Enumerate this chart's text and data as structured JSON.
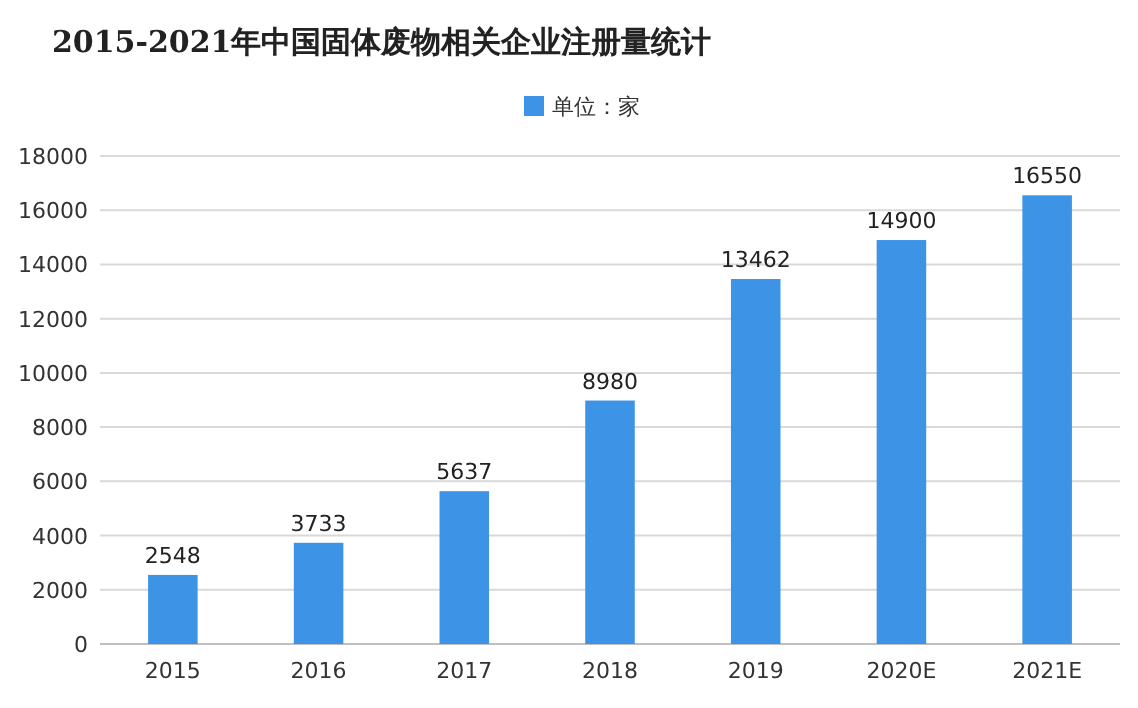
{
  "chart_data": {
    "type": "bar",
    "title": "2015-2021年中国固体废物相关企业注册量统计",
    "categories": [
      "2015",
      "2016",
      "2017",
      "2018",
      "2019",
      "2020E",
      "2021E"
    ],
    "series": [
      {
        "name": "单位：家",
        "color": "#3d94e6",
        "values": [
          2548,
          3733,
          5637,
          8980,
          13462,
          14900,
          16550
        ]
      }
    ],
    "ylim": [
      0,
      18000
    ],
    "yticks": [
      0,
      2000,
      4000,
      6000,
      8000,
      10000,
      12000,
      14000,
      16000,
      18000
    ],
    "grid": "y",
    "legend": "top",
    "data_labels": true
  }
}
